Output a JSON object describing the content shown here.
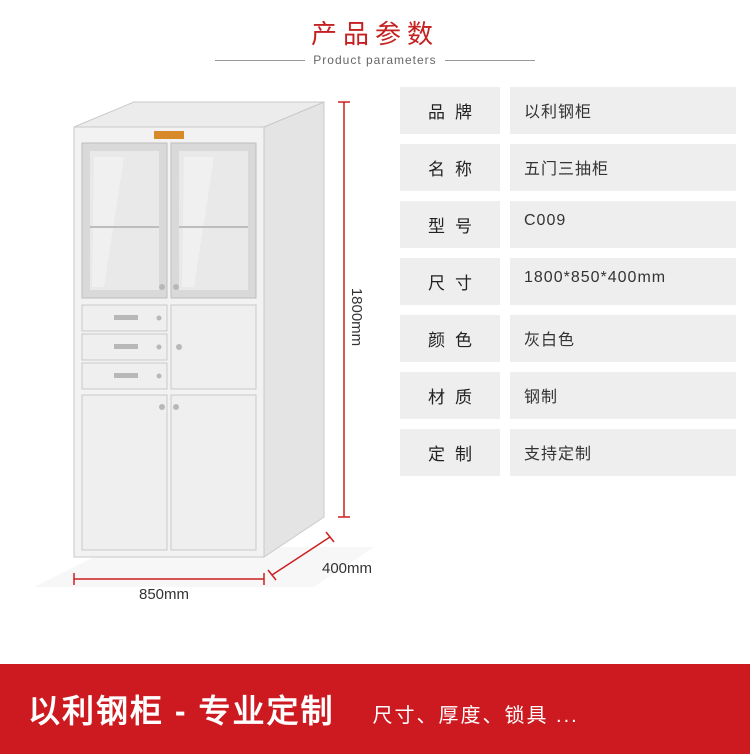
{
  "header": {
    "title_cn": "产品参数",
    "title_en": "Product parameters",
    "accent_color": "#c62121"
  },
  "dimensions": {
    "height_label": "1800mm",
    "width_label": "850mm",
    "depth_label": "400mm",
    "line_color": "#cc1f1f"
  },
  "specs": [
    {
      "label": "品牌",
      "value": "以利钢柜"
    },
    {
      "label": "名称",
      "value": "五门三抽柜"
    },
    {
      "label": "型号",
      "value": "C009"
    },
    {
      "label": "尺寸",
      "value": "1800*850*400mm"
    },
    {
      "label": "颜色",
      "value": "灰白色"
    },
    {
      "label": "材质",
      "value": "钢制"
    },
    {
      "label": "定制",
      "value": "支持定制"
    }
  ],
  "spec_style": {
    "label_bg": "#eeeeee",
    "value_bg": "#eeeeee",
    "label_fontsize": 17,
    "value_fontsize": 16
  },
  "banner": {
    "main": "以利钢柜 - 专业定制",
    "sub": "尺寸、厚度、锁具 ...",
    "bg_color": "#cc1a20",
    "text_color": "#ffffff"
  },
  "cabinet": {
    "body_fill": "#f2f2f2",
    "body_stroke": "#c9c9c9",
    "side_fill": "#e4e4e4",
    "glass_fill": "#d9d9d9",
    "glass_inner": "#e9e9e9",
    "handle_fill": "#b8b8b8",
    "label_fill": "#d88a2a"
  }
}
